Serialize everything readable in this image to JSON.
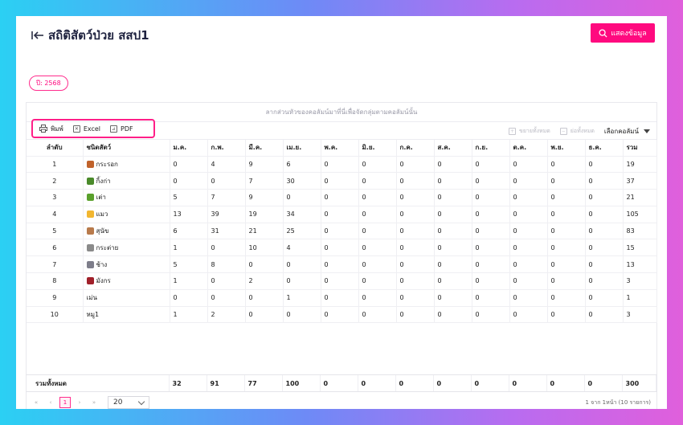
{
  "header": {
    "title": "สถิติสัตว์ป่วย สสป1",
    "back_icon": "back-arrow-icon"
  },
  "show_button": {
    "label": "แสดงข้อมูล",
    "icon": "search-icon"
  },
  "year_badge": "ปี: 2568",
  "group_hint": "ลากส่วนหัวของคอลัมน์มาที่นี่เพื่อจัดกลุ่มตามคอลัมน์นั้น",
  "toolbar": {
    "print": "พิมพ์",
    "excel": "Excel",
    "pdf": "PDF",
    "expand_all": "ขยายทั้งหมด",
    "collapse_all": "ย่อทั้งหมด",
    "column_chooser": "เลือกคอลัมน์"
  },
  "columns": [
    "ลำดับ",
    "ชนิดสัตว์",
    "ม.ค.",
    "ก.พ.",
    "มี.ค.",
    "เม.ย.",
    "พ.ค.",
    "มิ.ย.",
    "ก.ค.",
    "ส.ค.",
    "ก.ย.",
    "ต.ค.",
    "พ.ย.",
    "ธ.ค.",
    "รวม"
  ],
  "rows": [
    {
      "no": "1",
      "name": "กระรอก",
      "icon_color": "#c0622b",
      "values": [
        "0",
        "4",
        "9",
        "6",
        "0",
        "0",
        "0",
        "0",
        "0",
        "0",
        "0",
        "0"
      ],
      "total": "19"
    },
    {
      "no": "2",
      "name": "กิ้งก่า",
      "icon_color": "#4a8a2a",
      "values": [
        "0",
        "0",
        "7",
        "30",
        "0",
        "0",
        "0",
        "0",
        "0",
        "0",
        "0",
        "0"
      ],
      "total": "37"
    },
    {
      "no": "3",
      "name": "เต่า",
      "icon_color": "#5aa02c",
      "values": [
        "5",
        "7",
        "9",
        "0",
        "0",
        "0",
        "0",
        "0",
        "0",
        "0",
        "0",
        "0"
      ],
      "total": "21"
    },
    {
      "no": "4",
      "name": "แมว",
      "icon_color": "#f2b630",
      "values": [
        "13",
        "39",
        "19",
        "34",
        "0",
        "0",
        "0",
        "0",
        "0",
        "0",
        "0",
        "0"
      ],
      "total": "105"
    },
    {
      "no": "5",
      "name": "สุนัข",
      "icon_color": "#b87a4b",
      "values": [
        "6",
        "31",
        "21",
        "25",
        "0",
        "0",
        "0",
        "0",
        "0",
        "0",
        "0",
        "0"
      ],
      "total": "83"
    },
    {
      "no": "6",
      "name": "กระต่าย",
      "icon_color": "#8a8a8a",
      "values": [
        "1",
        "0",
        "10",
        "4",
        "0",
        "0",
        "0",
        "0",
        "0",
        "0",
        "0",
        "0"
      ],
      "total": "15"
    },
    {
      "no": "7",
      "name": "ช้าง",
      "icon_color": "#7d7d8a",
      "values": [
        "5",
        "8",
        "0",
        "0",
        "0",
        "0",
        "0",
        "0",
        "0",
        "0",
        "0",
        "0"
      ],
      "total": "13"
    },
    {
      "no": "8",
      "name": "มังกร",
      "icon_color": "#a0202a",
      "values": [
        "1",
        "0",
        "2",
        "0",
        "0",
        "0",
        "0",
        "0",
        "0",
        "0",
        "0",
        "0"
      ],
      "total": "3"
    },
    {
      "no": "9",
      "name": "เม่น",
      "icon_color": "",
      "values": [
        "0",
        "0",
        "0",
        "1",
        "0",
        "0",
        "0",
        "0",
        "0",
        "0",
        "0",
        "0"
      ],
      "total": "1"
    },
    {
      "no": "10",
      "name": "หมู1",
      "icon_color": "",
      "values": [
        "1",
        "2",
        "0",
        "0",
        "0",
        "0",
        "0",
        "0",
        "0",
        "0",
        "0",
        "0"
      ],
      "total": "3"
    }
  ],
  "summary": {
    "label": "รวมทั้งหมด",
    "values": [
      "32",
      "91",
      "77",
      "100",
      "0",
      "0",
      "0",
      "0",
      "0",
      "0",
      "0",
      "0"
    ],
    "total": "300"
  },
  "pager": {
    "first": "«",
    "prev": "‹",
    "current": "1",
    "next": "›",
    "last": "»",
    "page_size": "20",
    "info": "1 จาก 1หน้า (10 รายการ)"
  },
  "colors": {
    "accent": "#ff0a7f"
  }
}
